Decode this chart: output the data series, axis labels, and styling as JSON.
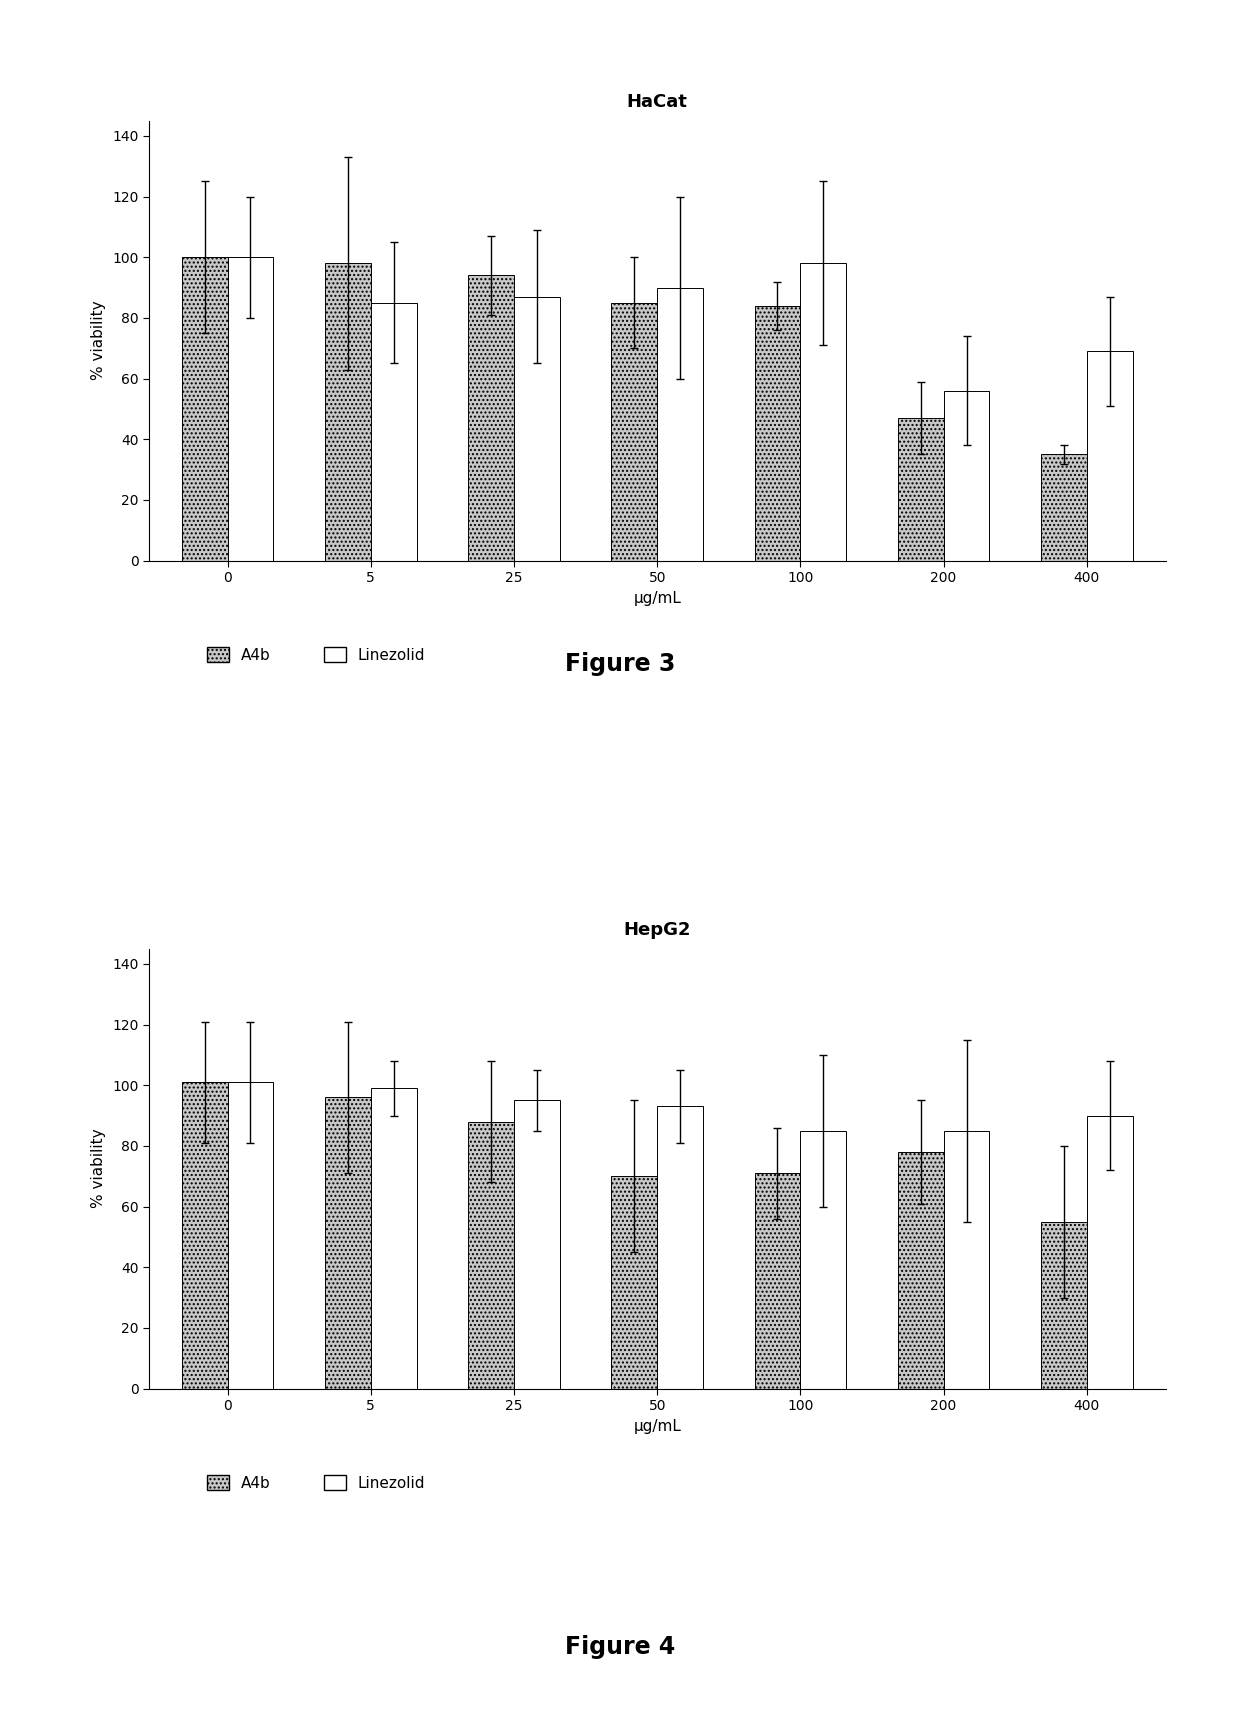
{
  "fig1": {
    "title": "HaCat",
    "figure_label": "Figure 3",
    "xlabel": "μg/mL",
    "ylabel": "% viability",
    "categories": [
      0,
      5,
      25,
      50,
      100,
      200,
      400
    ],
    "a4b_values": [
      100,
      98,
      94,
      85,
      84,
      47,
      35
    ],
    "a4b_errors": [
      25,
      35,
      13,
      15,
      8,
      12,
      3
    ],
    "linezolid_values": [
      100,
      85,
      87,
      90,
      98,
      56,
      69
    ],
    "linezolid_errors": [
      20,
      20,
      22,
      30,
      27,
      18,
      18
    ],
    "ylim": [
      0,
      145
    ],
    "yticks": [
      0,
      20,
      40,
      60,
      80,
      100,
      120,
      140
    ]
  },
  "fig2": {
    "title": "HepG2",
    "figure_label": "Figure 4",
    "xlabel": "μg/mL",
    "ylabel": "% viability",
    "categories": [
      0,
      5,
      25,
      50,
      100,
      200,
      400
    ],
    "a4b_values": [
      101,
      96,
      88,
      70,
      71,
      78,
      55
    ],
    "a4b_errors": [
      20,
      25,
      20,
      25,
      15,
      17,
      25
    ],
    "linezolid_values": [
      101,
      99,
      95,
      93,
      85,
      85,
      90
    ],
    "linezolid_errors": [
      20,
      9,
      10,
      12,
      25,
      30,
      18
    ],
    "ylim": [
      0,
      145
    ],
    "yticks": [
      0,
      20,
      40,
      60,
      80,
      100,
      120,
      140
    ]
  },
  "bar_width": 0.32,
  "a4b_color": "#c8c8c8",
  "linezolid_color": "#ffffff",
  "hatch_a4b": "....",
  "hatch_linezolid": "",
  "legend_labels": [
    "A4b",
    "Linezolid"
  ],
  "title_fontsize": 13,
  "label_fontsize": 11,
  "tick_fontsize": 10,
  "figure_label_fontsize": 17,
  "background_color": "#ffffff"
}
